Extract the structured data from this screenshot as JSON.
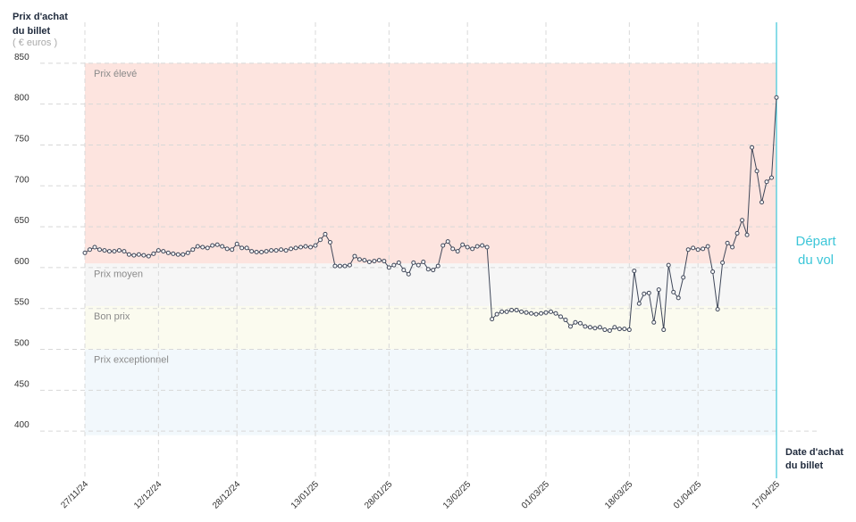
{
  "chart_data": {
    "type": "line",
    "y_label": [
      "Prix d'achat",
      "du billet"
    ],
    "y_unit": "( € euros )",
    "x_label": [
      "Date d'achat",
      "du billet"
    ],
    "ylim": [
      350,
      900
    ],
    "yticks": [
      400,
      450,
      500,
      550,
      600,
      650,
      700,
      750,
      800,
      850
    ],
    "xlim": [
      "27/11/24",
      "17/04/25"
    ],
    "xticks": [
      "27/11/24",
      "12/12/24",
      "28/12/24",
      "13/01/25",
      "28/01/25",
      "13/02/25",
      "01/03/25",
      "18/03/25",
      "01/04/25",
      "17/04/25"
    ],
    "grid": true,
    "color": "#3f4759",
    "bands": [
      {
        "label": "Prix élevé",
        "from": 605,
        "to": 850,
        "color": "#fde4df"
      },
      {
        "label": "Prix moyen",
        "from": 553,
        "to": 605,
        "color": "#f6f6f6"
      },
      {
        "label": "Bon prix",
        "from": 500,
        "to": 553,
        "color": "#fbfbef"
      },
      {
        "label": "Prix exceptionnel",
        "from": 395,
        "to": 500,
        "color": "#f2f8fc"
      }
    ],
    "marker": {
      "x": "17/04/25",
      "label": [
        "Départ",
        "du vol"
      ],
      "color": "#3cc6d8"
    },
    "x": [
      "27/11/24",
      "28/11/24",
      "29/11/24",
      "30/11/24",
      "01/12/24",
      "02/12/24",
      "03/12/24",
      "04/12/24",
      "05/12/24",
      "06/12/24",
      "07/12/24",
      "08/12/24",
      "09/12/24",
      "10/12/24",
      "11/12/24",
      "12/12/24",
      "13/12/24",
      "14/12/24",
      "15/12/24",
      "16/12/24",
      "17/12/24",
      "18/12/24",
      "19/12/24",
      "20/12/24",
      "21/12/24",
      "22/12/24",
      "23/12/24",
      "24/12/24",
      "25/12/24",
      "26/12/24",
      "27/12/24",
      "28/12/24",
      "29/12/24",
      "30/12/24",
      "31/12/24",
      "01/01/25",
      "02/01/25",
      "03/01/25",
      "04/01/25",
      "05/01/25",
      "06/01/25",
      "07/01/25",
      "08/01/25",
      "09/01/25",
      "10/01/25",
      "11/01/25",
      "12/01/25",
      "13/01/25",
      "14/01/25",
      "15/01/25",
      "16/01/25",
      "17/01/25",
      "18/01/25",
      "19/01/25",
      "20/01/25",
      "21/01/25",
      "22/01/25",
      "23/01/25",
      "24/01/25",
      "25/01/25",
      "26/01/25",
      "27/01/25",
      "28/01/25",
      "29/01/25",
      "30/01/25",
      "31/01/25",
      "01/02/25",
      "02/02/25",
      "03/02/25",
      "04/02/25",
      "05/02/25",
      "06/02/25",
      "07/02/25",
      "08/02/25",
      "09/02/25",
      "10/02/25",
      "11/02/25",
      "12/02/25",
      "13/02/25",
      "14/02/25",
      "15/02/25",
      "16/02/25",
      "17/02/25",
      "18/02/25",
      "19/02/25",
      "20/02/25",
      "21/02/25",
      "22/02/25",
      "23/02/25",
      "24/02/25",
      "25/02/25",
      "26/02/25",
      "27/02/25",
      "28/02/25",
      "01/03/25",
      "02/03/25",
      "03/03/25",
      "04/03/25",
      "05/03/25",
      "06/03/25",
      "07/03/25",
      "08/03/25",
      "09/03/25",
      "10/03/25",
      "11/03/25",
      "12/03/25",
      "13/03/25",
      "14/03/25",
      "15/03/25",
      "16/03/25",
      "17/03/25",
      "18/03/25",
      "19/03/25",
      "20/03/25",
      "21/03/25",
      "22/03/25",
      "23/03/25",
      "24/03/25",
      "25/03/25",
      "26/03/25",
      "27/03/25",
      "28/03/25",
      "29/03/25",
      "30/03/25",
      "31/03/25",
      "01/04/25",
      "02/04/25",
      "03/04/25",
      "04/04/25",
      "05/04/25",
      "06/04/25",
      "07/04/25",
      "08/04/25",
      "09/04/25",
      "10/04/25",
      "11/04/25",
      "12/04/25",
      "13/04/25",
      "14/04/25",
      "15/04/25",
      "16/04/25",
      "17/04/25"
    ],
    "values": [
      618,
      622,
      625,
      622,
      621,
      620,
      620,
      621,
      620,
      616,
      615,
      616,
      615,
      614,
      617,
      621,
      620,
      618,
      617,
      616,
      616,
      618,
      622,
      626,
      625,
      624,
      627,
      628,
      626,
      623,
      622,
      629,
      624,
      624,
      620,
      619,
      619,
      620,
      621,
      621,
      622,
      621,
      623,
      624,
      625,
      626,
      625,
      627,
      634,
      641,
      631,
      602,
      602,
      602,
      603,
      614,
      610,
      609,
      607,
      608,
      609,
      608,
      600,
      603,
      606,
      597,
      592,
      606,
      603,
      607,
      598,
      597,
      602,
      627,
      632,
      623,
      620,
      628,
      625,
      623,
      626,
      627,
      625,
      537,
      543,
      546,
      546,
      548,
      548,
      546,
      545,
      544,
      543,
      544,
      545,
      546,
      544,
      540,
      536,
      528,
      533,
      532,
      528,
      527,
      526,
      527,
      524,
      523,
      527,
      525,
      525,
      524,
      596,
      556,
      568,
      569,
      533,
      573,
      524,
      603,
      570,
      563,
      588,
      622,
      624,
      622,
      623,
      626,
      595,
      549,
      606,
      630,
      625,
      642,
      658,
      640,
      747,
      718,
      680,
      705,
      710,
      808
    ]
  }
}
